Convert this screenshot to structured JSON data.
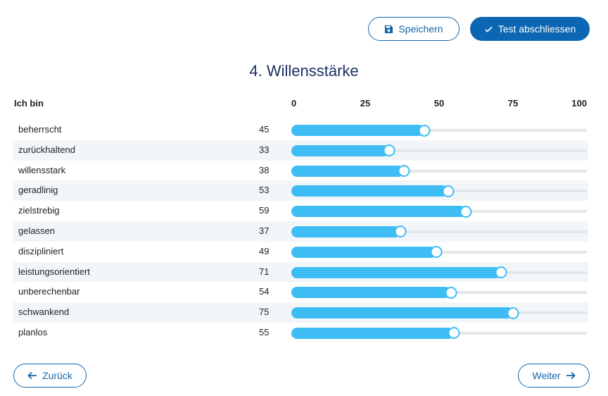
{
  "toolbar": {
    "save_label": "Speichern",
    "finish_label": "Test abschliessen"
  },
  "section": {
    "title": "4. Willensstärke"
  },
  "table": {
    "column_label": "Ich bin",
    "scale_ticks": [
      "0",
      "25",
      "50",
      "75",
      "100"
    ],
    "scale_max": 100,
    "rows": [
      {
        "label": "beherrscht",
        "value": 45
      },
      {
        "label": "zurückhaltend",
        "value": 33
      },
      {
        "label": "willensstark",
        "value": 38
      },
      {
        "label": "geradlinig",
        "value": 53
      },
      {
        "label": "zielstrebig",
        "value": 59
      },
      {
        "label": "gelassen",
        "value": 37
      },
      {
        "label": "diszipliniert",
        "value": 49
      },
      {
        "label": "leistungsorientiert",
        "value": 71
      },
      {
        "label": "unberechenbar",
        "value": 54
      },
      {
        "label": "schwankend",
        "value": 75
      },
      {
        "label": "planlos",
        "value": 55
      }
    ]
  },
  "navigation": {
    "back_label": "Zurück",
    "next_label": "Weiter"
  },
  "colors": {
    "primary": "#0b66b3",
    "slider": "#3ebdf5",
    "title": "#1b2f63"
  }
}
